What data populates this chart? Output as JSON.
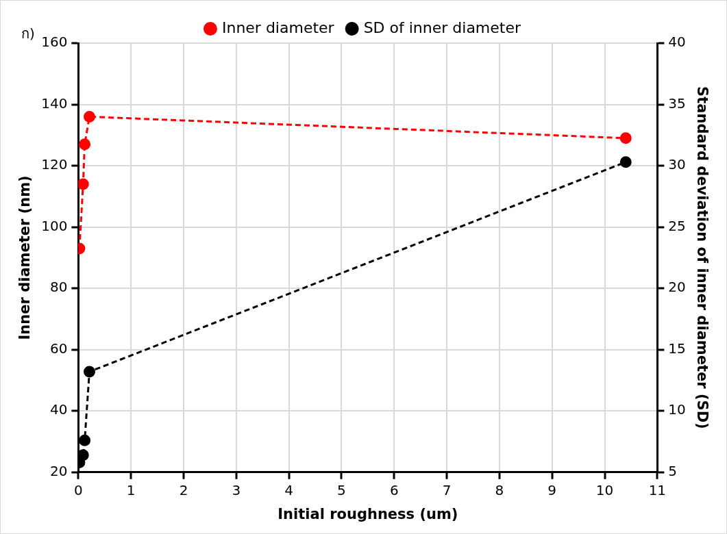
{
  "chart_data": {
    "type": "line",
    "xlabel": "Initial roughness (um)",
    "ylabel": "Inner diameter (nm)",
    "y2label": "Standard deviation of inner diameter (SD)",
    "annotations": [
      "ก)"
    ],
    "x": [
      0.02,
      0.09,
      0.12,
      0.21,
      10.4
    ],
    "series": [
      {
        "name": "Inner diameter",
        "color": "#ff0000",
        "values": [
          93,
          114,
          127,
          136,
          129
        ]
      },
      {
        "name": "SD of inner diameter",
        "color": "#000000",
        "axis": "y2",
        "values": [
          5.8,
          6.4,
          7.6,
          13.2,
          30.3
        ]
      }
    ],
    "xlim": [
      0,
      11
    ],
    "xticks": [
      0,
      1,
      2,
      3,
      4,
      5,
      6,
      7,
      8,
      9,
      10,
      11
    ],
    "ylim": [
      20,
      160
    ],
    "yticks": [
      20,
      40,
      60,
      80,
      100,
      120,
      140,
      160
    ],
    "y2lim": [
      5,
      40
    ],
    "y2ticks": [
      5,
      10,
      15,
      20,
      25,
      30,
      35,
      40
    ],
    "grid": true,
    "legend": "top",
    "marker": "circle",
    "line_style": "dashed"
  }
}
